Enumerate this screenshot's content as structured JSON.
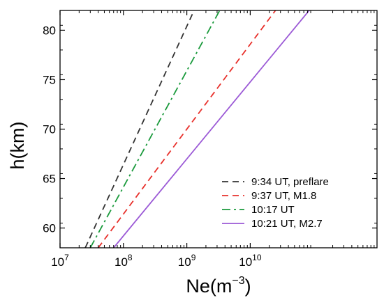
{
  "chart_data": {
    "type": "line",
    "xlabel": "Ne(m",
    "xlabel_sup": "−3",
    "xlabel_end": ")",
    "ylabel": "h(km)",
    "xscale": "log",
    "xlim": [
      10000000,
      1000000000000
    ],
    "ylim": [
      58,
      82
    ],
    "x_ticks": [
      {
        "value": 10000000,
        "base": "10",
        "exp": "7"
      },
      {
        "value": 100000000,
        "base": "10",
        "exp": "8"
      },
      {
        "value": 1000000000,
        "base": "10",
        "exp": "9"
      },
      {
        "value": 10000000000,
        "base": "10",
        "exp": "10"
      }
    ],
    "y_ticks": [
      60,
      65,
      70,
      75,
      80
    ],
    "grid": false,
    "legend_position": "bottom-right",
    "series": [
      {
        "name": "9:34 UT, preflare",
        "color": "#333333",
        "dash": "dashed",
        "x": [
          25000000,
          1300000000
        ],
        "y": [
          58,
          82
        ]
      },
      {
        "name": "9:37 UT, M1.8",
        "color": "#e8302b",
        "dash": "dashed",
        "x": [
          40000000,
          25000000000
        ],
        "y": [
          58,
          82
        ]
      },
      {
        "name": "10:17 UT",
        "color": "#1a9a3c",
        "dash": "dashdot",
        "x": [
          30000000,
          3300000000
        ],
        "y": [
          58,
          82
        ]
      },
      {
        "name": "10:21 UT, M2.7",
        "color": "#9b59d6",
        "dash": "solid",
        "x": [
          70000000,
          85000000000
        ],
        "y": [
          58,
          82
        ]
      }
    ]
  }
}
